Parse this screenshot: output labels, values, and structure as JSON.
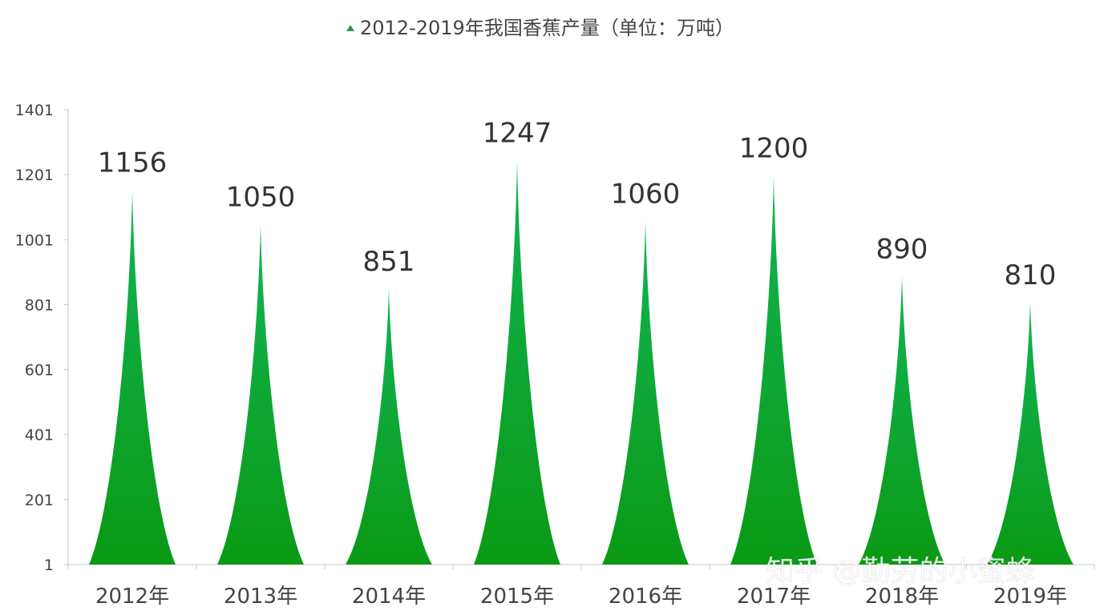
{
  "chart_data": {
    "type": "bar",
    "mark_shape": "spike",
    "title": "",
    "legend": {
      "label": "2012-2019年我国香蕉产量（单位：万吨）",
      "placement": "top",
      "marker": "triangle"
    },
    "categories": [
      "2012年",
      "2013年",
      "2014年",
      "2015年",
      "2016年",
      "2017年",
      "2018年",
      "2019年"
    ],
    "series": [
      {
        "name": "2012-2019年我国香蕉产量（单位：万吨）",
        "values": [
          1156,
          1050,
          851,
          1247,
          1060,
          1200,
          890,
          810
        ]
      }
    ],
    "data_labels": [
      "1156",
      "1050",
      "851",
      "1247",
      "1060",
      "1200",
      "890",
      "810"
    ],
    "ylim": [
      1,
      1401
    ],
    "yticks": [
      "1",
      "201",
      "401",
      "601",
      "801",
      "1001",
      "1201",
      "1401"
    ],
    "xlabel": "",
    "ylabel": "",
    "grid": false,
    "colors": {
      "top": "#12b456",
      "bottom": "#0a9a14",
      "axis": "#b8cfcf",
      "text": "#444444"
    }
  },
  "watermark": "知乎 @勤劳的小蜜蜂"
}
